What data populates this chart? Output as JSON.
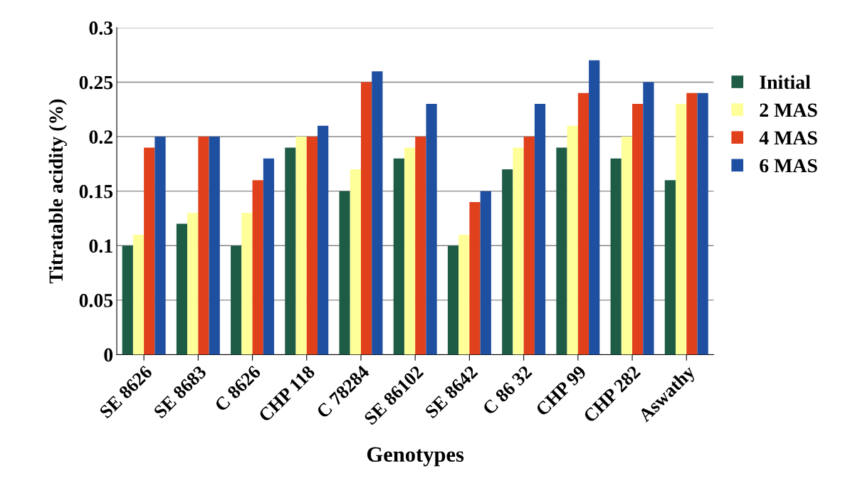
{
  "chart_data": {
    "type": "bar",
    "xlabel": "Genotypes",
    "ylabel": "Titratable acidity (%)",
    "categories": [
      "SE 8626",
      "SE 8683",
      "C 8626",
      "CHP 118",
      "C 78284",
      "SE 86102",
      "SE 8642",
      "C 86 32",
      "CHP 99",
      "CHP 282",
      "Aswathy"
    ],
    "series": [
      {
        "name": "Initial",
        "color": "#1f5c45",
        "values": [
          0.1,
          0.12,
          0.1,
          0.19,
          0.15,
          0.18,
          0.1,
          0.17,
          0.19,
          0.18,
          0.16
        ]
      },
      {
        "name": "2 MAS",
        "color": "#ffff99",
        "values": [
          0.11,
          0.13,
          0.13,
          0.2,
          0.17,
          0.19,
          0.11,
          0.19,
          0.21,
          0.2,
          0.23
        ]
      },
      {
        "name": "4 MAS",
        "color": "#e0401c",
        "values": [
          0.19,
          0.2,
          0.16,
          0.2,
          0.25,
          0.2,
          0.14,
          0.2,
          0.24,
          0.23,
          0.24
        ]
      },
      {
        "name": "6 MAS",
        "color": "#1f4fa0",
        "values": [
          0.2,
          0.2,
          0.18,
          0.21,
          0.26,
          0.23,
          0.15,
          0.23,
          0.27,
          0.25,
          0.24
        ]
      }
    ],
    "ylim": [
      0,
      0.3
    ],
    "yticks": [
      0,
      {
        "value": 0.05,
        "label": "0.05"
      },
      {
        "value": 0.1,
        "label": "0.1"
      },
      {
        "value": 0.15,
        "label": "0.15"
      },
      {
        "value": 0.2,
        "label": "0.2"
      },
      {
        "value": 0.25,
        "label": "0.25"
      },
      {
        "value": 0.3,
        "label": "0.3"
      }
    ],
    "grid": "y",
    "legend": "right"
  }
}
